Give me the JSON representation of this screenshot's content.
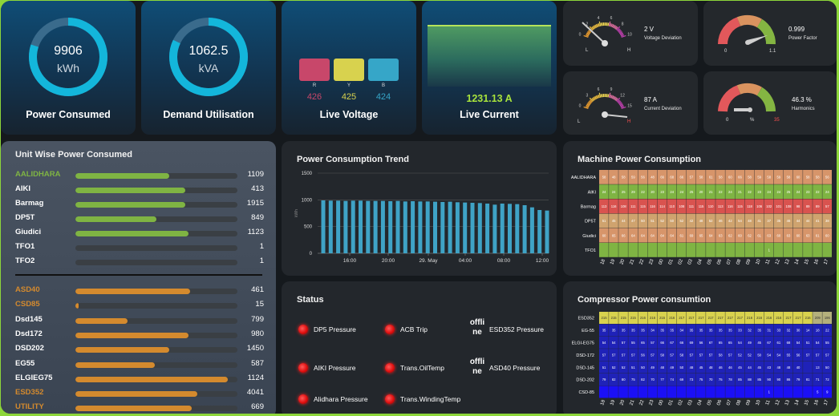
{
  "kpis": {
    "power_consumed": {
      "value": "9906",
      "unit": "kWh",
      "label": "Power Consumed",
      "fill": 0.8
    },
    "demand_utilisation": {
      "value": "1062.5",
      "unit": "kVA",
      "label": "Demand Utilisation",
      "fill": 0.82
    },
    "live_voltage": {
      "label": "Live Voltage",
      "phases": [
        {
          "letter": "R",
          "value": "426",
          "color": "#c8476a"
        },
        {
          "letter": "Y",
          "value": "425",
          "color": "#d8d24e"
        },
        {
          "letter": "B",
          "value": "424",
          "color": "#36a6c8"
        }
      ]
    },
    "live_current": {
      "value": "1231.13 A",
      "label": "Live Current"
    }
  },
  "gauges": {
    "voltage_deviation": {
      "value": "2 V",
      "label": "Voltage Deviation",
      "ticks": [
        "0",
        "2",
        "4",
        "6",
        "8",
        "10"
      ],
      "low": "L",
      "high": "H"
    },
    "power_factor": {
      "value": "0.999",
      "label": "Power Factor",
      "min": "0",
      "max": "1.1"
    },
    "current_deviation": {
      "value": "87 A",
      "label": "Current Deviation",
      "ticks": [
        "0",
        "3",
        "6",
        "9",
        "12",
        "15"
      ],
      "low": "L",
      "high": "H"
    },
    "harmonics": {
      "value": "46.3 %",
      "label": "Harmonics",
      "min": "0",
      "unit": "%",
      "max": "35"
    }
  },
  "unit_wise": {
    "title": "Unit Wise Power Consumed",
    "group1": [
      {
        "name": "AALIDHARA",
        "value": "1109",
        "fill": 0.58,
        "highlight": true
      },
      {
        "name": "AIKI",
        "value": "413",
        "fill": 0.68,
        "highlight": false
      },
      {
        "name": "Barmag",
        "value": "1915",
        "fill": 0.68,
        "highlight": false
      },
      {
        "name": "DP5T",
        "value": "849",
        "fill": 0.5,
        "highlight": false
      },
      {
        "name": "Giudici",
        "value": "1123",
        "fill": 0.7,
        "highlight": false
      },
      {
        "name": "TFO1",
        "value": "1",
        "fill": 0,
        "highlight": false
      },
      {
        "name": "TFO2",
        "value": "1",
        "fill": 0,
        "highlight": false
      }
    ],
    "group2": [
      {
        "name": "ASD40",
        "value": "461",
        "fill": 0.71,
        "highlight": true
      },
      {
        "name": "CSD85",
        "value": "15",
        "fill": 0.02,
        "highlight": true
      },
      {
        "name": "Dsd145",
        "value": "799",
        "fill": 0.32,
        "highlight": false
      },
      {
        "name": "Dsd172",
        "value": "980",
        "fill": 0.7,
        "highlight": false
      },
      {
        "name": "DSD202",
        "value": "1450",
        "fill": 0.58,
        "highlight": false
      },
      {
        "name": "EG55",
        "value": "587",
        "fill": 0.49,
        "highlight": false
      },
      {
        "name": "ELGIEG75",
        "value": "1124",
        "fill": 0.94,
        "highlight": false
      },
      {
        "name": "ESD352",
        "value": "4041",
        "fill": 0.75,
        "highlight": true
      },
      {
        "name": "UTILITY",
        "value": "669",
        "fill": 0.72,
        "highlight": true
      }
    ],
    "colors": {
      "green": "#7fb443",
      "orange": "#d48a2e"
    }
  },
  "chart_data": {
    "type": "bar",
    "title": "Power Consumption Trend",
    "ylabel": "kWh",
    "ylim": [
      0,
      1500
    ],
    "yticks": [
      "0",
      "500",
      "1000",
      "1500"
    ],
    "x_ticks": [
      "16:00",
      "20:00",
      "29. May",
      "04:00",
      "08:00",
      "12:00"
    ],
    "values": [
      990,
      985,
      985,
      980,
      985,
      985,
      980,
      980,
      980,
      975,
      980,
      970,
      975,
      970,
      970,
      965,
      960,
      965,
      955,
      950,
      945,
      940,
      930,
      910,
      930,
      925,
      920,
      900,
      860,
      810,
      800
    ],
    "color": "#3fa3c6"
  },
  "machine": {
    "title": "Machine Power Consumption",
    "rows": [
      "AALIDHARA",
      "AIKI",
      "Barmag",
      "DP5T",
      "Giudici",
      "TFO1"
    ],
    "cols": [
      "18",
      "19",
      "20",
      "21",
      "22",
      "23",
      "00",
      "01",
      "02",
      "03",
      "04",
      "05",
      "06",
      "07",
      "08",
      "09",
      "10",
      "11",
      "12",
      "13",
      "14",
      "15",
      "16",
      "17"
    ],
    "values": [
      [
        "58",
        "48",
        "58",
        "59",
        "56",
        "48",
        "66",
        "68",
        "66",
        "57",
        "58",
        "61",
        "58",
        "60",
        "66",
        "58",
        "59",
        "58",
        "59",
        "58",
        "60",
        "58",
        "58",
        "56"
      ],
      [
        "24",
        "24",
        "25",
        "29",
        "22",
        "20",
        "23",
        "24",
        "24",
        "25",
        "20",
        "21",
        "22",
        "24",
        "21",
        "22",
        "23",
        "24",
        "24",
        "25",
        "24",
        "23",
        "22",
        "24"
      ],
      [
        "113",
        "116",
        "108",
        "111",
        "115",
        "116",
        "114",
        "110",
        "108",
        "111",
        "115",
        "110",
        "113",
        "116",
        "115",
        "118",
        "106",
        "102",
        "101",
        "108",
        "98",
        "89",
        "89",
        "57"
      ],
      [
        "51",
        "45",
        "44",
        "47",
        "50",
        "51",
        "52",
        "50",
        "52",
        "42",
        "48",
        "52",
        "46",
        "42",
        "54",
        "48",
        "41",
        "37",
        "35",
        "46",
        "44",
        "44",
        "41",
        "38"
      ],
      [
        "60",
        "65",
        "66",
        "64",
        "64",
        "64",
        "64",
        "64",
        "61",
        "69",
        "65",
        "64",
        "63",
        "62",
        "60",
        "62",
        "61",
        "63",
        "60",
        "63",
        "60",
        "63",
        "61",
        "60"
      ],
      [
        "",
        "",
        "",
        "",
        "",
        "",
        "",
        "",
        "",
        "",
        "",
        "",
        "",
        "",
        "",
        "",
        "",
        "1",
        "",
        "",
        "",
        "",
        "",
        ""
      ]
    ],
    "colors": {
      "green": "#7fb443",
      "orange": "#d7956a",
      "red": "#d9534f"
    }
  },
  "compressor": {
    "title": "Compressor Power consumtion",
    "rows": [
      "ESD352",
      "EG-55",
      "ELGI-EG75",
      "DSD-172",
      "DSD-145",
      "DSD-202",
      "CSD-85"
    ],
    "cols": [
      "18",
      "19",
      "20",
      "21",
      "22",
      "23",
      "00",
      "01",
      "02",
      "03",
      "04",
      "05",
      "06",
      "07",
      "08",
      "09",
      "10",
      "11",
      "12",
      "13",
      "14",
      "15",
      "16",
      "17"
    ],
    "values": [
      [
        "215",
        "215",
        "215",
        "215",
        "216",
        "216",
        "215",
        "216",
        "217",
        "217",
        "217",
        "217",
        "217",
        "217",
        "217",
        "216",
        "216",
        "216",
        "216",
        "217",
        "217",
        "216",
        "209",
        "196"
      ],
      [
        "35",
        "35",
        "35",
        "35",
        "35",
        "34",
        "35",
        "35",
        "34",
        "35",
        "35",
        "35",
        "35",
        "35",
        "33",
        "32",
        "35",
        "31",
        "33",
        "32",
        "30",
        "14",
        "18",
        "22"
      ],
      [
        "54",
        "54",
        "57",
        "55",
        "65",
        "57",
        "66",
        "67",
        "66",
        "69",
        "56",
        "67",
        "65",
        "65",
        "54",
        "49",
        "45",
        "67",
        "61",
        "68",
        "54",
        "51",
        "54",
        "55"
      ],
      [
        "57",
        "57",
        "57",
        "57",
        "56",
        "57",
        "58",
        "57",
        "58",
        "57",
        "57",
        "57",
        "58",
        "57",
        "52",
        "52",
        "50",
        "54",
        "54",
        "55",
        "56",
        "57",
        "57",
        "57"
      ],
      [
        "51",
        "52",
        "52",
        "51",
        "50",
        "49",
        "48",
        "49",
        "50",
        "48",
        "45",
        "48",
        "46",
        "46",
        "45",
        "44",
        "45",
        "43",
        "48",
        "48",
        "40",
        "",
        "13",
        "50"
      ],
      [
        "79",
        "82",
        "80",
        "75",
        "82",
        "70",
        "77",
        "74",
        "69",
        "73",
        "75",
        "70",
        "75",
        "78",
        "85",
        "88",
        "85",
        "90",
        "90",
        "86",
        "79",
        "81",
        "71",
        "72"
      ],
      [
        "",
        "",
        "",
        "",
        "",
        "",
        "",
        "",
        "",
        "",
        "",
        "",
        "",
        "",
        "",
        "",
        "",
        "1",
        "",
        "",
        "",
        "",
        "5",
        "9"
      ]
    ],
    "colors": {
      "yellow": "#d8d24e",
      "blue": "#1f22b8",
      "brightblue": "#1b10f5"
    }
  },
  "status": {
    "title": "Status",
    "items": [
      {
        "label": "DP5 Pressure",
        "state": "alarm"
      },
      {
        "label": "ACB Trip",
        "state": "alarm"
      },
      {
        "label": "AIKI Pressure",
        "state": "alarm"
      },
      {
        "label": "Trans.OilTemp",
        "state": "alarm"
      },
      {
        "label": "Alidhara Pressure",
        "state": "alarm"
      },
      {
        "label": "Trans.WindingTemp",
        "state": "alarm"
      }
    ],
    "offline": [
      {
        "state": "offli ne",
        "label": "ESD352 Pressure"
      },
      {
        "state": "offli ne",
        "label": "ASD40 Pressure"
      }
    ]
  }
}
